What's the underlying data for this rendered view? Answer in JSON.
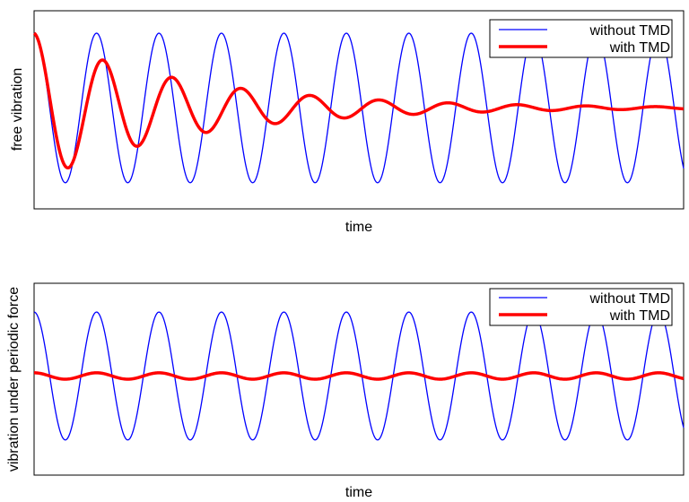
{
  "chart_data": [
    {
      "type": "line",
      "xlabel": "time",
      "ylabel": "free vibration",
      "grid": false,
      "legend_position": "top-right",
      "series": [
        {
          "name": "without TMD",
          "color": "#0000ff",
          "model": "sine",
          "amplitude": 1.0,
          "cycles": 10.4,
          "phase": 1.5708,
          "decay": 0.0
        },
        {
          "name": "with TMD",
          "color": "#ff0000",
          "model": "damped-sine",
          "amplitude": 1.0,
          "cycles": 9.4,
          "phase": 1.5708,
          "decay": 4.2
        }
      ],
      "ylim": [
        -1.35,
        1.3
      ]
    },
    {
      "type": "line",
      "xlabel": "time",
      "ylabel": "vibration under periodic force",
      "grid": false,
      "legend_position": "top-right",
      "series": [
        {
          "name": "without TMD",
          "color": "#0000ff",
          "model": "sine",
          "amplitude": 1.0,
          "cycles": 10.4,
          "phase": 1.5708,
          "decay": 0.0
        },
        {
          "name": "with TMD",
          "color": "#ff0000",
          "model": "sine",
          "amplitude": 0.05,
          "cycles": 10.4,
          "phase": 1.5708,
          "decay": 0.0
        }
      ],
      "ylim": [
        -1.55,
        1.45
      ]
    }
  ]
}
